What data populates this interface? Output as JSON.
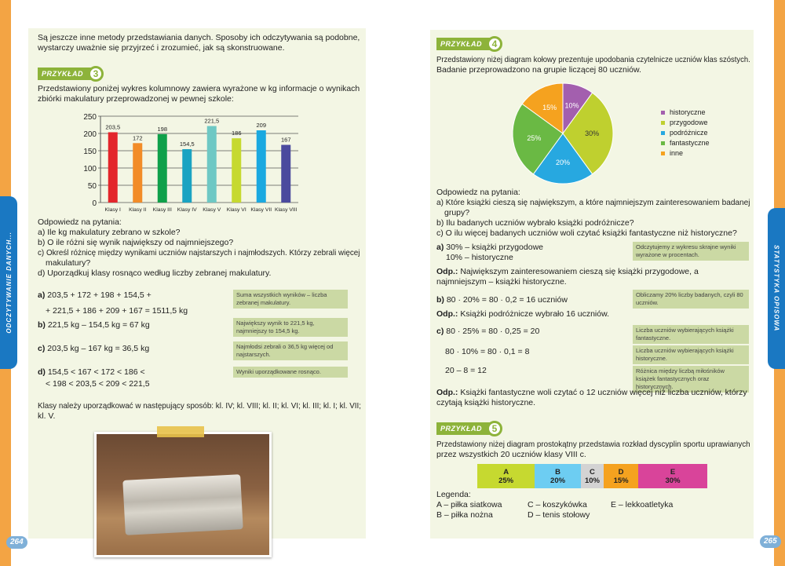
{
  "left_page": {
    "side_tab": "ODCZYTYWANIE DANYCH...",
    "page_number": "264",
    "intro": [
      "Są jeszcze inne metody przedstawiania danych. Sposoby ich odczytywania są podobne,",
      "wystarczy uważnie się przyjrzeć i zrozumieć, jak są skonstruowane."
    ],
    "example": {
      "label": "PRZYKŁAD",
      "number": "3",
      "text": [
        "Przedstawiony poniżej wykres kolumnowy zawiera wyrażone w kg informacje o wynikach",
        "zbiórki makulatury przeprowadzonej w pewnej szkole:"
      ]
    },
    "questions_title": "Odpowiedz na pytania:",
    "questions": [
      "a) Ile kg makulatury zebrano w szkole?",
      "b) O ile różni się wynik największy od najmniejszego?",
      "c) Określ różnicę między wynikami uczniów najstarszych i najmłodszych. Którzy zebrali więcej",
      "makulatury?",
      "d) Uporządkuj klasy rosnąco według liczby zebranej makulatury."
    ],
    "answers": [
      {
        "label": "a)",
        "lines": [
          "203,5 + 172 + 198 + 154,5 +",
          "+ 221,5 + 186 + 209 + 167 = 1511,5 kg"
        ],
        "note": "Suma wszystkich wyników – liczba zebranej makulatury."
      },
      {
        "label": "b)",
        "lines": [
          "221,5 kg – 154,5 kg = 67 kg"
        ],
        "note": "Największy wynik to 221,5 kg, najmniejszy to 154,5 kg."
      },
      {
        "label": "c)",
        "lines": [
          "203,5 kg – 167 kg = 36,5 kg"
        ],
        "note": "Najmłodsi zebrali o 36,5 kg więcej od najstarszych."
      },
      {
        "label": "d)",
        "lines": [
          "154,5 < 167 < 172 < 186 <",
          "< 198 < 203,5 < 209 < 221,5"
        ],
        "note": "Wyniki uporządkowane rosnąco."
      }
    ],
    "conclusion": [
      "Klasy należy uporządkować w następujący sposób: kl. IV; kl. VIII; kl. II; kl. VI; kl. III; kl. I; kl. VII;",
      "kl. V."
    ]
  },
  "right_page": {
    "side_tab": "STATYSTYKA OPISOWA",
    "page_number": "265",
    "example4": {
      "label": "PRZYKŁAD",
      "number": "4",
      "text": [
        "Przedstawiony niżej diagram kołowy prezentuje upodobania czytelnicze uczniów klas szóstych.",
        "Badanie przeprowadzono na grupie liczącej 80 uczniów."
      ]
    },
    "questions_title": "Odpowiedz na pytania:",
    "questions": [
      "a) Które książki cieszą się największym, a które najmniejszym zainteresowaniem badanej",
      "grupy?",
      "b) Ilu badanych uczniów wybrało książki podróżnicze?",
      "c) O ilu więcej badanych uczniów woli czytać książki fantastyczne niż historyczne?"
    ],
    "a_lines": [
      "30% – książki przygodowe",
      "10% – historyczne"
    ],
    "a_label": "a)",
    "a_note": "Odczytujemy z wykresu skrajne wyniki wyrażone w procentach.",
    "odp_label": "Odp.:",
    "a_odp": "Największym zainteresowaniem cieszą się książki przygodowe, a najmniejszym – książki historyczne.",
    "b_label": "b)",
    "b_line": "80 · 20% = 80 · 0,2 = 16 uczniów",
    "b_note": "Obliczamy 20% liczby badanych, czyli 80 uczniów.",
    "b_odp": "Książki podróżnicze wybrało 16 uczniów.",
    "c_label": "c)",
    "c_lines": [
      "80 · 25% = 80 · 0,25 = 20",
      "80 · 10% = 80 · 0,1 = 8",
      "20 – 8 = 12"
    ],
    "c_notes": [
      "Liczba uczniów wybierających książki fantastyczne.",
      "Liczba uczniów wybierających książki historyczne.",
      "Różnica między liczbą miłośników książek fantastycznych oraz historycznych."
    ],
    "c_odp": "Książki fantastyczne woli czytać o 12 uczniów więcej niż liczba uczniów, którzy czytają książki historyczne.",
    "example5": {
      "label": "PRZYKŁAD",
      "number": "5",
      "text": [
        "Przedstawiony niżej diagram prostokątny przedstawia rozkład dyscyplin sportu uprawianych",
        "przez wszystkich 20 uczniów klasy VIII c."
      ]
    },
    "legend_title": "Legenda:",
    "legend": [
      "A – piłka siatkowa",
      "B – piłka nożna",
      "C – koszykówka",
      "D – tenis stołowy",
      "E – lekkoatletyka"
    ]
  },
  "chart_data": [
    {
      "type": "bar",
      "categories": [
        "Klasy I",
        "Klasy II",
        "Klasy III",
        "Klasy IV",
        "Klasy V",
        "Klasy VI",
        "Klasy VII",
        "Klasy VIII"
      ],
      "values": [
        203.5,
        172,
        198,
        154.5,
        221.5,
        186,
        209,
        167
      ],
      "data_labels": [
        "203,5",
        "172",
        "198",
        "154,5",
        "221,5",
        "186",
        "209",
        "167"
      ],
      "yticks": [
        "0",
        "50",
        "100",
        "150",
        "200",
        "250"
      ],
      "ylim": [
        0,
        250
      ],
      "grid": true,
      "colors": [
        "#e3262b",
        "#f28c28",
        "#0fa04a",
        "#1aa3c2",
        "#6ec8c4",
        "#c6d930",
        "#1aa9e0",
        "#4b4a9e"
      ]
    },
    {
      "type": "pie",
      "labels": [
        "historyczne",
        "przygodowe",
        "podróżnicze",
        "fantastyczne",
        "inne"
      ],
      "values": [
        10,
        30,
        20,
        25,
        15
      ],
      "data_labels": [
        "10%",
        "30%",
        "20%",
        "25%",
        "15%"
      ],
      "colors": [
        "#a35fae",
        "#bfd02f",
        "#27a8e0",
        "#6ab944",
        "#f5a21f"
      ],
      "legend": "right"
    },
    {
      "type": "bar",
      "orientation": "stacked-horizontal",
      "labels": [
        "A",
        "B",
        "C",
        "D",
        "E"
      ],
      "values": [
        25,
        20,
        10,
        15,
        30
      ],
      "data_labels": [
        "25%",
        "20%",
        "10%",
        "15%",
        "30%"
      ],
      "colors": [
        "#c6d930",
        "#6dcdf2",
        "#d3d3d3",
        "#f5a21f",
        "#d9449a"
      ]
    }
  ]
}
